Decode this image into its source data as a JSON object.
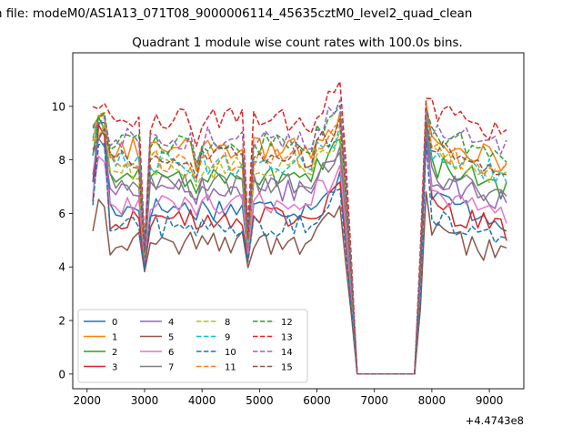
{
  "figure": {
    "suptitle": "n file: modeM0/AS1A13_071T08_9000006114_45635cztM0_level2_quad_clean",
    "offset_text": "+4.4743e8"
  },
  "chart_data": {
    "type": "line",
    "title": "Quadrant 1 module wise count rates with 100.0s bins.",
    "xlabel": "",
    "ylabel": "",
    "x_offset": 447430000,
    "xlim": [
      1750,
      9600
    ],
    "ylim": [
      -0.55,
      12.0
    ],
    "x_ticks": [
      2000,
      3000,
      4000,
      5000,
      6000,
      7000,
      8000,
      9000
    ],
    "x_tick_labels": [
      "2000",
      "3000",
      "4000",
      "5000",
      "6000",
      "7000",
      "8000",
      "9000"
    ],
    "y_ticks": [
      0,
      2,
      4,
      6,
      8,
      10
    ],
    "y_tick_labels": [
      "0",
      "2",
      "4",
      "6",
      "8",
      "10"
    ],
    "grid": false,
    "legend_position": "lower-left",
    "legend_columns": 4,
    "x_segments": [
      [
        2100,
        6700
      ],
      [
        7700,
        9300
      ]
    ],
    "series": [
      {
        "name": "0",
        "color": "#1f77b4",
        "dash": "solid",
        "level": 6.2,
        "spike": 9.8
      },
      {
        "name": "1",
        "color": "#ff7f0e",
        "dash": "solid",
        "level": 8.4,
        "spike": 10.1
      },
      {
        "name": "2",
        "color": "#2ca02c",
        "dash": "solid",
        "level": 7.4,
        "spike": 9.6
      },
      {
        "name": "3",
        "color": "#d62728",
        "dash": "solid",
        "level": 5.8,
        "spike": 9.4
      },
      {
        "name": "4",
        "color": "#9467bd",
        "dash": "solid",
        "level": 6.9,
        "spike": 9.0
      },
      {
        "name": "5",
        "color": "#8c564b",
        "dash": "solid",
        "level": 4.9,
        "spike": 6.8
      },
      {
        "name": "6",
        "color": "#e377c2",
        "dash": "solid",
        "level": 6.4,
        "spike": 8.5
      },
      {
        "name": "7",
        "color": "#7f7f7f",
        "dash": "solid",
        "level": 7.1,
        "spike": 9.2
      },
      {
        "name": "8",
        "color": "#bcbd22",
        "dash": "dashed",
        "level": 7.7,
        "spike": 9.4
      },
      {
        "name": "9",
        "color": "#17becf",
        "dash": "dashed",
        "level": 7.9,
        "spike": 9.7
      },
      {
        "name": "10",
        "color": "#1f77b4",
        "dash": "dashed",
        "level": 5.5,
        "spike": 8.7
      },
      {
        "name": "11",
        "color": "#ff7f0e",
        "dash": "dashed",
        "level": 8.0,
        "spike": 9.9
      },
      {
        "name": "12",
        "color": "#2ca02c",
        "dash": "dashed",
        "level": 8.6,
        "spike": 9.9
      },
      {
        "name": "13",
        "color": "#d62728",
        "dash": "dashed",
        "level": 9.5,
        "spike": 10.3
      },
      {
        "name": "14",
        "color": "#9467bd",
        "dash": "dashed",
        "level": 8.8,
        "spike": 9.8
      },
      {
        "name": "15",
        "color": "#8c564b",
        "dash": "dashed",
        "level": 8.1,
        "spike": 9.4
      }
    ]
  }
}
